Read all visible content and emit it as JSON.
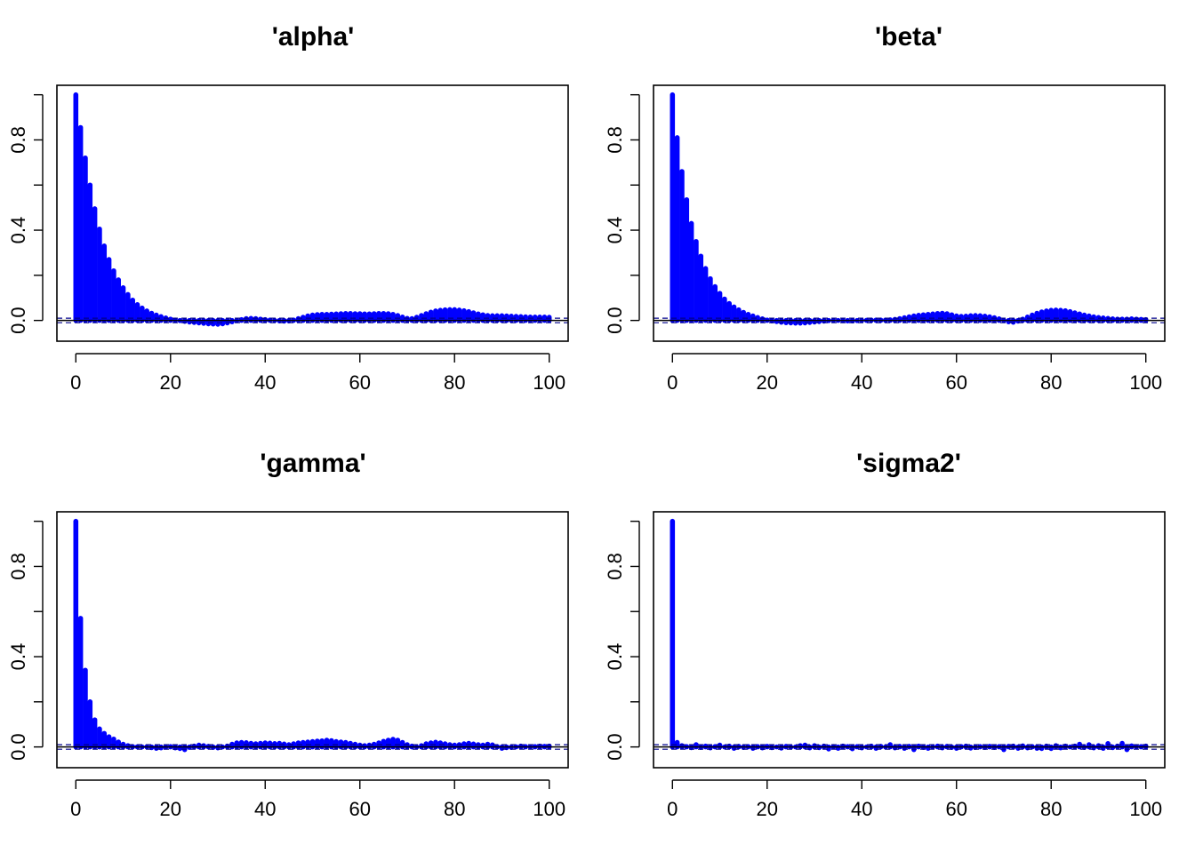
{
  "chart_data": [
    {
      "type": "bar",
      "title": "'alpha'",
      "color": "#0000ff",
      "x": [
        0,
        1,
        2,
        3,
        4,
        5,
        6,
        7,
        8,
        9,
        10,
        11,
        12,
        13,
        14,
        15,
        16,
        17,
        18,
        19,
        20,
        21,
        22,
        23,
        24,
        25,
        26,
        27,
        28,
        29,
        30,
        31,
        32,
        33,
        34,
        35,
        36,
        37,
        38,
        39,
        40,
        41,
        42,
        43,
        44,
        45,
        46,
        47,
        48,
        49,
        50,
        51,
        52,
        53,
        54,
        55,
        56,
        57,
        58,
        59,
        60,
        61,
        62,
        63,
        64,
        65,
        66,
        67,
        68,
        69,
        70,
        71,
        72,
        73,
        74,
        75,
        76,
        77,
        78,
        79,
        80,
        81,
        82,
        83,
        84,
        85,
        86,
        87,
        88,
        89,
        90,
        91,
        92,
        93,
        94,
        95,
        96,
        97,
        98,
        99,
        100
      ],
      "values": [
        1.0,
        0.855,
        0.72,
        0.6,
        0.495,
        0.405,
        0.33,
        0.27,
        0.22,
        0.18,
        0.145,
        0.115,
        0.09,
        0.07,
        0.055,
        0.042,
        0.032,
        0.024,
        0.017,
        0.011,
        0.006,
        0.002,
        -0.001,
        -0.004,
        -0.007,
        -0.009,
        -0.011,
        -0.013,
        -0.015,
        -0.016,
        -0.017,
        -0.015,
        -0.011,
        -0.006,
        -0.001,
        0.004,
        0.008,
        0.009,
        0.008,
        0.006,
        0.004,
        0.002,
        0.0,
        -0.002,
        -0.003,
        -0.002,
        0.002,
        0.008,
        0.014,
        0.02,
        0.024,
        0.026,
        0.027,
        0.027,
        0.028,
        0.029,
        0.03,
        0.031,
        0.031,
        0.03,
        0.03,
        0.029,
        0.029,
        0.03,
        0.031,
        0.031,
        0.03,
        0.027,
        0.022,
        0.015,
        0.009,
        0.008,
        0.014,
        0.022,
        0.03,
        0.037,
        0.042,
        0.045,
        0.047,
        0.048,
        0.048,
        0.046,
        0.043,
        0.039,
        0.034,
        0.029,
        0.025,
        0.022,
        0.021,
        0.021,
        0.021,
        0.02,
        0.019,
        0.018,
        0.017,
        0.016,
        0.015,
        0.015,
        0.015,
        0.015,
        0.014
      ],
      "xlim": [
        0,
        100
      ],
      "ylim": [
        -0.05,
        1.0
      ],
      "x_ticks": [
        "0",
        "20",
        "40",
        "60",
        "80",
        "100"
      ],
      "y_ticks": [
        "0.0",
        "0.4",
        "0.8"
      ],
      "x_tick_values": [
        0,
        20,
        40,
        60,
        80,
        100
      ],
      "y_tick_values": [
        0.0,
        0.4,
        0.8
      ],
      "ci": 0.01
    },
    {
      "type": "bar",
      "title": "'beta'",
      "color": "#0000ff",
      "x": [
        0,
        1,
        2,
        3,
        4,
        5,
        6,
        7,
        8,
        9,
        10,
        11,
        12,
        13,
        14,
        15,
        16,
        17,
        18,
        19,
        20,
        21,
        22,
        23,
        24,
        25,
        26,
        27,
        28,
        29,
        30,
        31,
        32,
        33,
        34,
        35,
        36,
        37,
        38,
        39,
        40,
        41,
        42,
        43,
        44,
        45,
        46,
        47,
        48,
        49,
        50,
        51,
        52,
        53,
        54,
        55,
        56,
        57,
        58,
        59,
        60,
        61,
        62,
        63,
        64,
        65,
        66,
        67,
        68,
        69,
        70,
        71,
        72,
        73,
        74,
        75,
        76,
        77,
        78,
        79,
        80,
        81,
        82,
        83,
        84,
        85,
        86,
        87,
        88,
        89,
        90,
        91,
        92,
        93,
        94,
        95,
        96,
        97,
        98,
        99,
        100
      ],
      "values": [
        1.0,
        0.81,
        0.66,
        0.535,
        0.43,
        0.35,
        0.285,
        0.23,
        0.185,
        0.15,
        0.12,
        0.095,
        0.075,
        0.06,
        0.047,
        0.036,
        0.027,
        0.02,
        0.013,
        0.007,
        0.002,
        -0.002,
        -0.005,
        -0.008,
        -0.01,
        -0.011,
        -0.012,
        -0.012,
        -0.011,
        -0.009,
        -0.007,
        -0.005,
        -0.003,
        -0.001,
        0.0,
        0.0,
        -0.001,
        -0.002,
        -0.002,
        -0.001,
        0.0,
        0.001,
        0.002,
        0.002,
        0.002,
        0.002,
        0.003,
        0.005,
        0.008,
        0.012,
        0.016,
        0.02,
        0.023,
        0.025,
        0.027,
        0.029,
        0.031,
        0.032,
        0.03,
        0.025,
        0.02,
        0.018,
        0.019,
        0.021,
        0.022,
        0.021,
        0.019,
        0.016,
        0.012,
        0.007,
        0.0,
        -0.006,
        -0.008,
        -0.003,
        0.006,
        0.015,
        0.024,
        0.032,
        0.038,
        0.042,
        0.045,
        0.046,
        0.045,
        0.043,
        0.039,
        0.034,
        0.029,
        0.024,
        0.02,
        0.016,
        0.013,
        0.011,
        0.009,
        0.007,
        0.006,
        0.006,
        0.006,
        0.007,
        0.006,
        0.005,
        0.004
      ],
      "xlim": [
        0,
        100
      ],
      "ylim": [
        -0.05,
        1.0
      ],
      "x_ticks": [
        "0",
        "20",
        "40",
        "60",
        "80",
        "100"
      ],
      "y_ticks": [
        "0.0",
        "0.4",
        "0.8"
      ],
      "x_tick_values": [
        0,
        20,
        40,
        60,
        80,
        100
      ],
      "y_tick_values": [
        0.0,
        0.4,
        0.8
      ],
      "ci": 0.01
    },
    {
      "type": "bar",
      "title": "'gamma'",
      "color": "#0000ff",
      "x": [
        0,
        1,
        2,
        3,
        4,
        5,
        6,
        7,
        8,
        9,
        10,
        11,
        12,
        13,
        14,
        15,
        16,
        17,
        18,
        19,
        20,
        21,
        22,
        23,
        24,
        25,
        26,
        27,
        28,
        29,
        30,
        31,
        32,
        33,
        34,
        35,
        36,
        37,
        38,
        39,
        40,
        41,
        42,
        43,
        44,
        45,
        46,
        47,
        48,
        49,
        50,
        51,
        52,
        53,
        54,
        55,
        56,
        57,
        58,
        59,
        60,
        61,
        62,
        63,
        64,
        65,
        66,
        67,
        68,
        69,
        70,
        71,
        72,
        73,
        74,
        75,
        76,
        77,
        78,
        79,
        80,
        81,
        82,
        83,
        84,
        85,
        86,
        87,
        88,
        89,
        90,
        91,
        92,
        93,
        94,
        95,
        96,
        97,
        98,
        99,
        100
      ],
      "values": [
        1.0,
        0.57,
        0.34,
        0.2,
        0.12,
        0.08,
        0.06,
        0.045,
        0.035,
        0.022,
        0.012,
        0.006,
        0.002,
        0.001,
        0.0,
        0.001,
        -0.003,
        -0.006,
        -0.004,
        -0.001,
        0.002,
        -0.004,
        -0.007,
        -0.012,
        -0.002,
        0.004,
        0.008,
        0.006,
        0.003,
        -0.002,
        -0.004,
        0.0,
        0.004,
        0.012,
        0.018,
        0.02,
        0.019,
        0.016,
        0.014,
        0.016,
        0.018,
        0.017,
        0.015,
        0.016,
        0.013,
        0.01,
        0.014,
        0.018,
        0.02,
        0.022,
        0.024,
        0.026,
        0.027,
        0.03,
        0.028,
        0.024,
        0.022,
        0.02,
        0.016,
        0.012,
        0.008,
        0.006,
        0.008,
        0.012,
        0.018,
        0.025,
        0.03,
        0.034,
        0.03,
        0.02,
        0.01,
        0.004,
        0.0,
        0.006,
        0.014,
        0.018,
        0.021,
        0.018,
        0.014,
        0.01,
        0.008,
        0.01,
        0.014,
        0.016,
        0.013,
        0.01,
        0.008,
        0.012,
        0.009,
        0.002,
        -0.006,
        -0.003,
        -0.002,
        0.001,
        0.004,
        0.002,
        0.0,
        0.002,
        0.004,
        0.003,
        0.004
      ],
      "xlim": [
        0,
        100
      ],
      "ylim": [
        -0.05,
        1.0
      ],
      "x_ticks": [
        "0",
        "20",
        "40",
        "60",
        "80",
        "100"
      ],
      "y_ticks": [
        "0.0",
        "0.4",
        "0.8"
      ],
      "x_tick_values": [
        0,
        20,
        40,
        60,
        80,
        100
      ],
      "y_tick_values": [
        0.0,
        0.4,
        0.8
      ],
      "ci": 0.01
    },
    {
      "type": "bar",
      "title": "'sigma2'",
      "color": "#0000ff",
      "x": [
        0,
        1,
        2,
        3,
        4,
        5,
        6,
        7,
        8,
        9,
        10,
        11,
        12,
        13,
        14,
        15,
        16,
        17,
        18,
        19,
        20,
        21,
        22,
        23,
        24,
        25,
        26,
        27,
        28,
        29,
        30,
        31,
        32,
        33,
        34,
        35,
        36,
        37,
        38,
        39,
        40,
        41,
        42,
        43,
        44,
        45,
        46,
        47,
        48,
        49,
        50,
        51,
        52,
        53,
        54,
        55,
        56,
        57,
        58,
        59,
        60,
        61,
        62,
        63,
        64,
        65,
        66,
        67,
        68,
        69,
        70,
        71,
        72,
        73,
        74,
        75,
        76,
        77,
        78,
        79,
        80,
        81,
        82,
        83,
        84,
        85,
        86,
        87,
        88,
        89,
        90,
        91,
        92,
        93,
        94,
        95,
        96,
        97,
        98,
        99,
        100
      ],
      "values": [
        1.0,
        0.02,
        0.006,
        0.002,
        -0.003,
        0.01,
        -0.002,
        0.004,
        -0.004,
        0.002,
        0.008,
        0.0,
        0.004,
        -0.006,
        0.003,
        -0.002,
        0.002,
        -0.006,
        0.002,
        -0.004,
        0.003,
        -0.003,
        0.0,
        -0.005,
        0.003,
        -0.001,
        0.0,
        0.006,
        0.008,
        -0.004,
        0.006,
        -0.003,
        0.004,
        -0.009,
        0.002,
        -0.006,
        0.004,
        0.002,
        -0.008,
        0.002,
        -0.004,
        0.0,
        0.004,
        -0.006,
        0.003,
        0.0,
        0.01,
        -0.004,
        0.003,
        -0.006,
        0.003,
        -0.012,
        0.004,
        -0.002,
        -0.006,
        0.0,
        0.004,
        -0.004,
        0.003,
        -0.002,
        -0.006,
        0.002,
        0.004,
        -0.005,
        -0.002,
        0.002,
        -0.002,
        0.003,
        -0.002,
        0.002,
        -0.012,
        0.003,
        0.004,
        -0.006,
        0.005,
        -0.004,
        0.002,
        -0.006,
        -0.007,
        0.004,
        -0.007,
        0.006,
        -0.004,
        0.004,
        0.0,
        0.004,
        0.012,
        -0.002,
        0.01,
        -0.004,
        0.006,
        -0.006,
        0.015,
        -0.003,
        0.004,
        0.016,
        -0.012,
        0.005,
        0.002,
        0.002,
        0.004
      ],
      "xlim": [
        0,
        100
      ],
      "ylim": [
        -0.05,
        1.0
      ],
      "x_ticks": [
        "0",
        "20",
        "40",
        "60",
        "80",
        "100"
      ],
      "y_ticks": [
        "0.0",
        "0.4",
        "0.8"
      ],
      "x_tick_values": [
        0,
        20,
        40,
        60,
        80,
        100
      ],
      "y_tick_values": [
        0.0,
        0.4,
        0.8
      ],
      "ci": 0.01
    }
  ]
}
